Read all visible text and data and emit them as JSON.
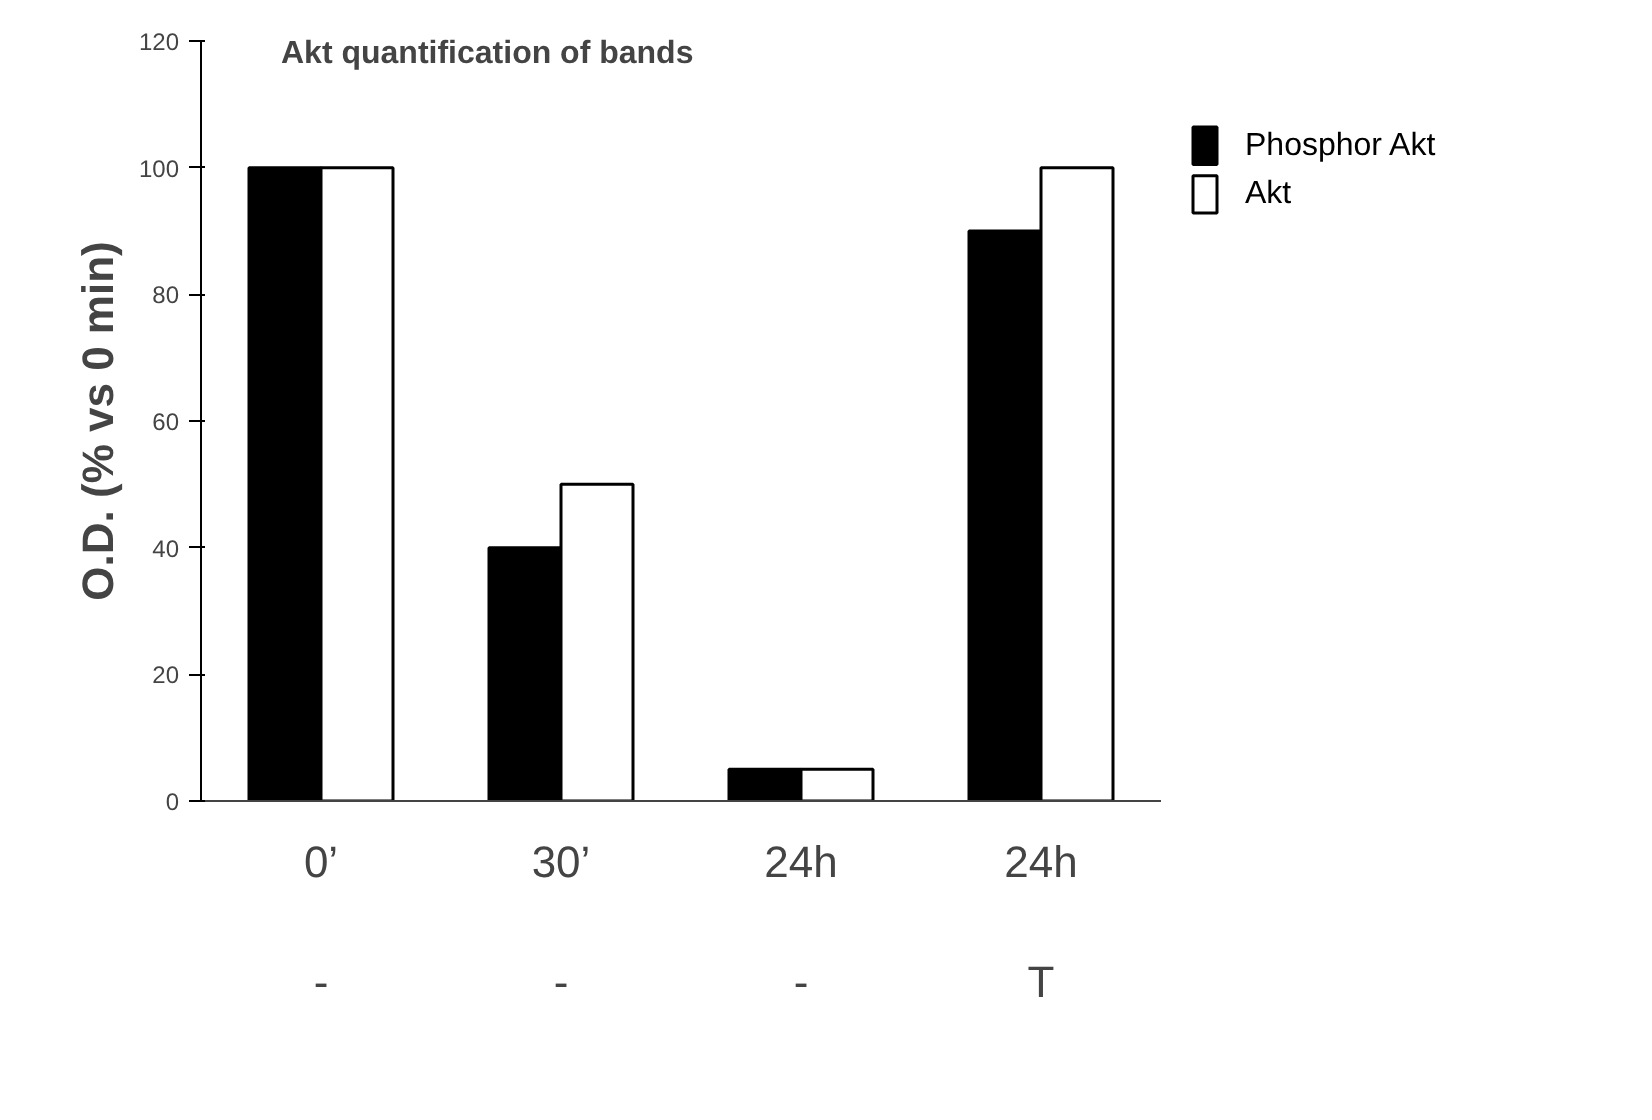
{
  "chart_data": {
    "type": "bar",
    "title": "Akt quantification of bands",
    "ylabel": "O.D. (% vs 0 min)",
    "categories": [
      "0’\n\n-",
      "30’\n\n-",
      "24h\n\n-",
      "24h\n\nT"
    ],
    "series": [
      {
        "name": "Phosphor Akt",
        "color": "#000000",
        "values": [
          100,
          40,
          5,
          90
        ]
      },
      {
        "name": "Akt",
        "color": "#ffffff",
        "values": [
          100,
          50,
          5,
          100
        ]
      }
    ],
    "ylim": [
      0,
      120
    ],
    "yticks": [
      0,
      20,
      40,
      60,
      80,
      100,
      120
    ],
    "grid": false,
    "legend": "right"
  }
}
